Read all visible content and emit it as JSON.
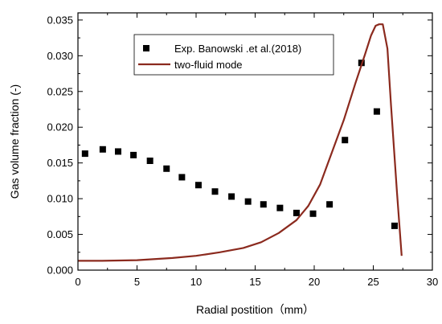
{
  "chart_data": {
    "type": "scatter",
    "xlabel": "Radial postition（mm）",
    "ylabel": "Gas volume fraction (-)",
    "xlim": [
      0,
      30
    ],
    "ylim": [
      0,
      0.036
    ],
    "x_ticks": [
      "0",
      "5",
      "10",
      "15",
      "20",
      "25",
      "30"
    ],
    "y_ticks": [
      "0.000",
      "0.005",
      "0.010",
      "0.015",
      "0.020",
      "0.025",
      "0.030",
      "0.035"
    ],
    "legend": {
      "placement": "top-center"
    },
    "series": [
      {
        "name": "Exp. Banowski .et al.(2018)",
        "kind": "scatter",
        "marker": "square",
        "color": "#000000",
        "points": [
          [
            0.6,
            0.0163
          ],
          [
            2.1,
            0.0169
          ],
          [
            3.4,
            0.0166
          ],
          [
            4.7,
            0.0161
          ],
          [
            6.1,
            0.0153
          ],
          [
            7.5,
            0.0142
          ],
          [
            8.8,
            0.013
          ],
          [
            10.2,
            0.0119
          ],
          [
            11.6,
            0.011
          ],
          [
            13.0,
            0.0103
          ],
          [
            14.4,
            0.0096
          ],
          [
            15.7,
            0.0092
          ],
          [
            17.1,
            0.0087
          ],
          [
            18.5,
            0.008
          ],
          [
            19.9,
            0.0079
          ],
          [
            21.3,
            0.0092
          ],
          [
            22.6,
            0.0182
          ],
          [
            24.0,
            0.029
          ],
          [
            25.3,
            0.0222
          ],
          [
            26.8,
            0.0062
          ]
        ]
      },
      {
        "name": "two-fluid mode",
        "kind": "line",
        "color": "#8b2a1e",
        "points": [
          [
            0.0,
            0.0013
          ],
          [
            2.0,
            0.0013
          ],
          [
            5.0,
            0.0014
          ],
          [
            8.0,
            0.0017
          ],
          [
            10.0,
            0.002
          ],
          [
            12.0,
            0.0025
          ],
          [
            14.0,
            0.0031
          ],
          [
            15.5,
            0.0039
          ],
          [
            17.0,
            0.0052
          ],
          [
            18.5,
            0.007
          ],
          [
            19.5,
            0.009
          ],
          [
            20.5,
            0.012
          ],
          [
            21.5,
            0.0165
          ],
          [
            22.5,
            0.021
          ],
          [
            23.5,
            0.0262
          ],
          [
            24.3,
            0.0302
          ],
          [
            24.8,
            0.0328
          ],
          [
            25.2,
            0.0342
          ],
          [
            25.5,
            0.0344
          ],
          [
            25.8,
            0.0344
          ],
          [
            26.2,
            0.031
          ],
          [
            26.5,
            0.023
          ],
          [
            27.0,
            0.011
          ],
          [
            27.4,
            0.002
          ]
        ]
      }
    ]
  }
}
